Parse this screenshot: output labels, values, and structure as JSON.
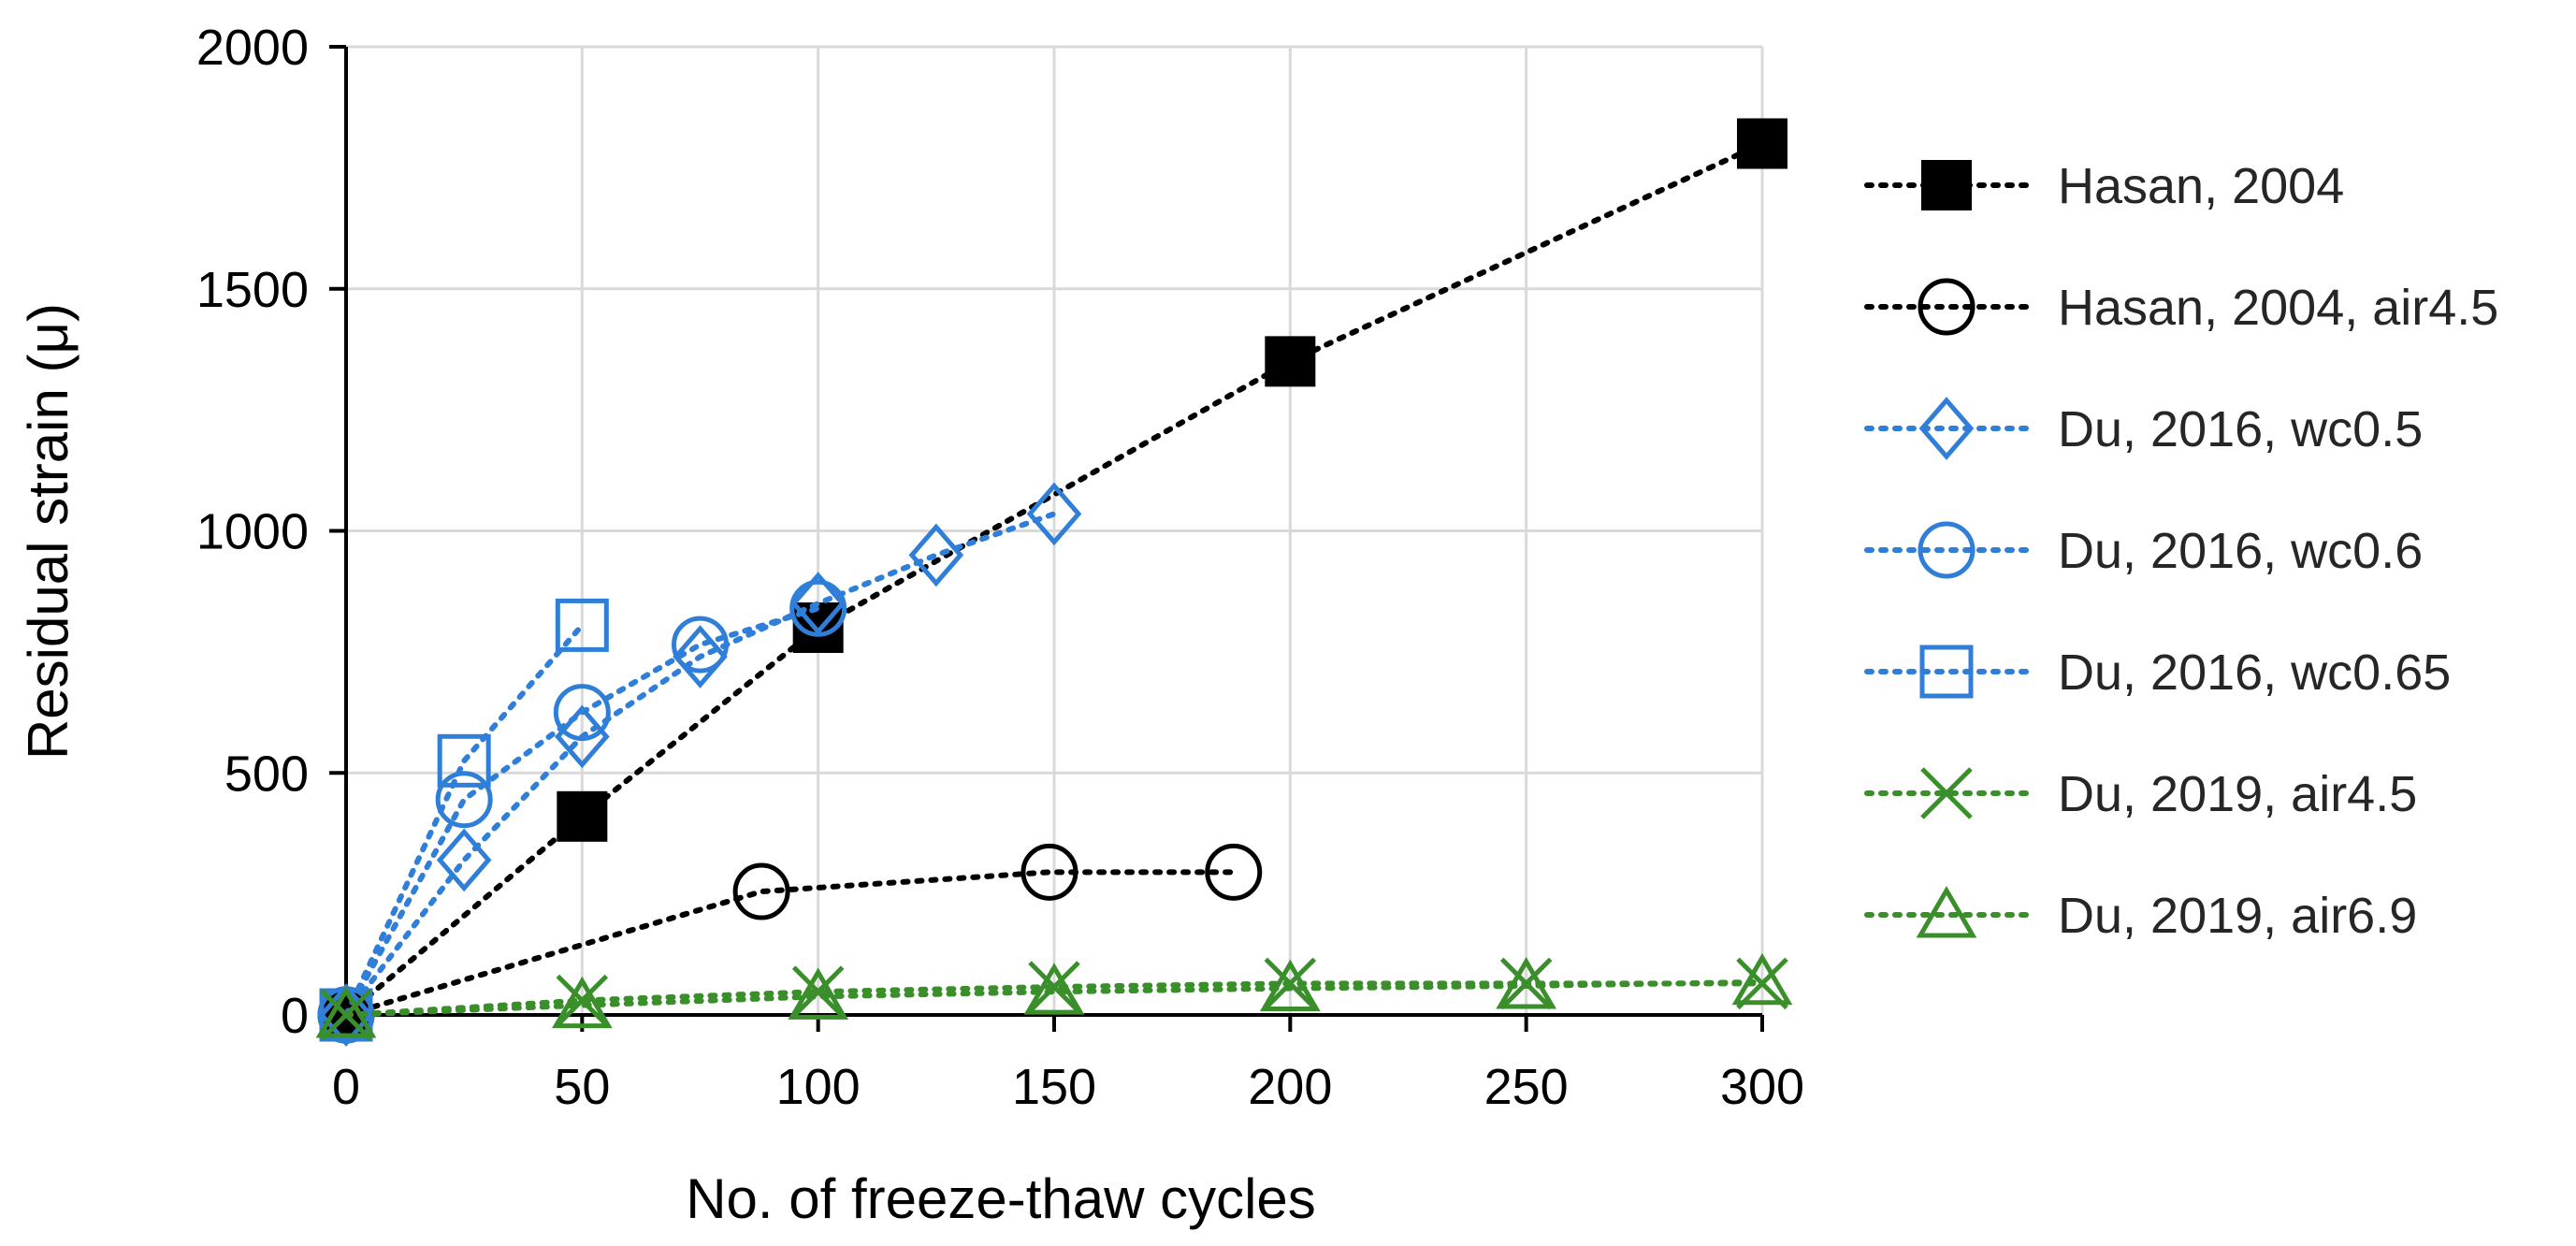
{
  "chart_data": {
    "type": "line",
    "title": "",
    "xlabel": "No. of freeze-thaw cycles",
    "ylabel": "Residual strain (μ)",
    "xlim": [
      0,
      300
    ],
    "ylim": [
      0,
      2000
    ],
    "x_ticks": [
      0,
      50,
      100,
      150,
      200,
      250,
      300
    ],
    "y_ticks": [
      0,
      500,
      1000,
      1500,
      2000
    ],
    "grid": true,
    "legend_position": "right",
    "series": [
      {
        "name": "Hasan, 2004",
        "color": "#000000",
        "marker": "filled-square",
        "line_style": "dotted",
        "points": [
          [
            0,
            0
          ],
          [
            50,
            410
          ],
          [
            100,
            800
          ],
          [
            200,
            1350
          ],
          [
            300,
            1800
          ]
        ]
      },
      {
        "name": "Hasan, 2004, air4.5",
        "color": "#000000",
        "marker": "open-circle",
        "line_style": "dotted",
        "points": [
          [
            0,
            0
          ],
          [
            88,
            255
          ],
          [
            149,
            295
          ],
          [
            188,
            295
          ]
        ]
      },
      {
        "name": "Du, 2016, wc0.5",
        "color": "#2F7ED8",
        "marker": "open-diamond",
        "line_style": "dotted",
        "points": [
          [
            0,
            0
          ],
          [
            25,
            320
          ],
          [
            50,
            575
          ],
          [
            75,
            740
          ],
          [
            100,
            850
          ],
          [
            125,
            950
          ],
          [
            150,
            1035
          ]
        ]
      },
      {
        "name": "Du, 2016, wc0.6",
        "color": "#2F7ED8",
        "marker": "open-circle",
        "line_style": "dotted",
        "points": [
          [
            0,
            0
          ],
          [
            25,
            445
          ],
          [
            50,
            625
          ],
          [
            75,
            765
          ],
          [
            100,
            840
          ]
        ]
      },
      {
        "name": "Du, 2016, wc0.65",
        "color": "#2F7ED8",
        "marker": "open-square",
        "line_style": "dotted",
        "points": [
          [
            0,
            0
          ],
          [
            25,
            525
          ],
          [
            50,
            805
          ]
        ]
      },
      {
        "name": "Du, 2019, air4.5",
        "color": "#3A8F2A",
        "marker": "x",
        "line_style": "dotted",
        "points": [
          [
            0,
            0
          ],
          [
            50,
            30
          ],
          [
            100,
            48
          ],
          [
            150,
            58
          ],
          [
            200,
            65
          ],
          [
            250,
            65
          ],
          [
            300,
            65
          ]
        ]
      },
      {
        "name": "Du, 2019, air6.9",
        "color": "#3A8F2A",
        "marker": "open-triangle",
        "line_style": "dotted",
        "points": [
          [
            0,
            0
          ],
          [
            50,
            20
          ],
          [
            100,
            38
          ],
          [
            150,
            48
          ],
          [
            200,
            55
          ],
          [
            250,
            60
          ],
          [
            300,
            68
          ]
        ]
      }
    ]
  }
}
